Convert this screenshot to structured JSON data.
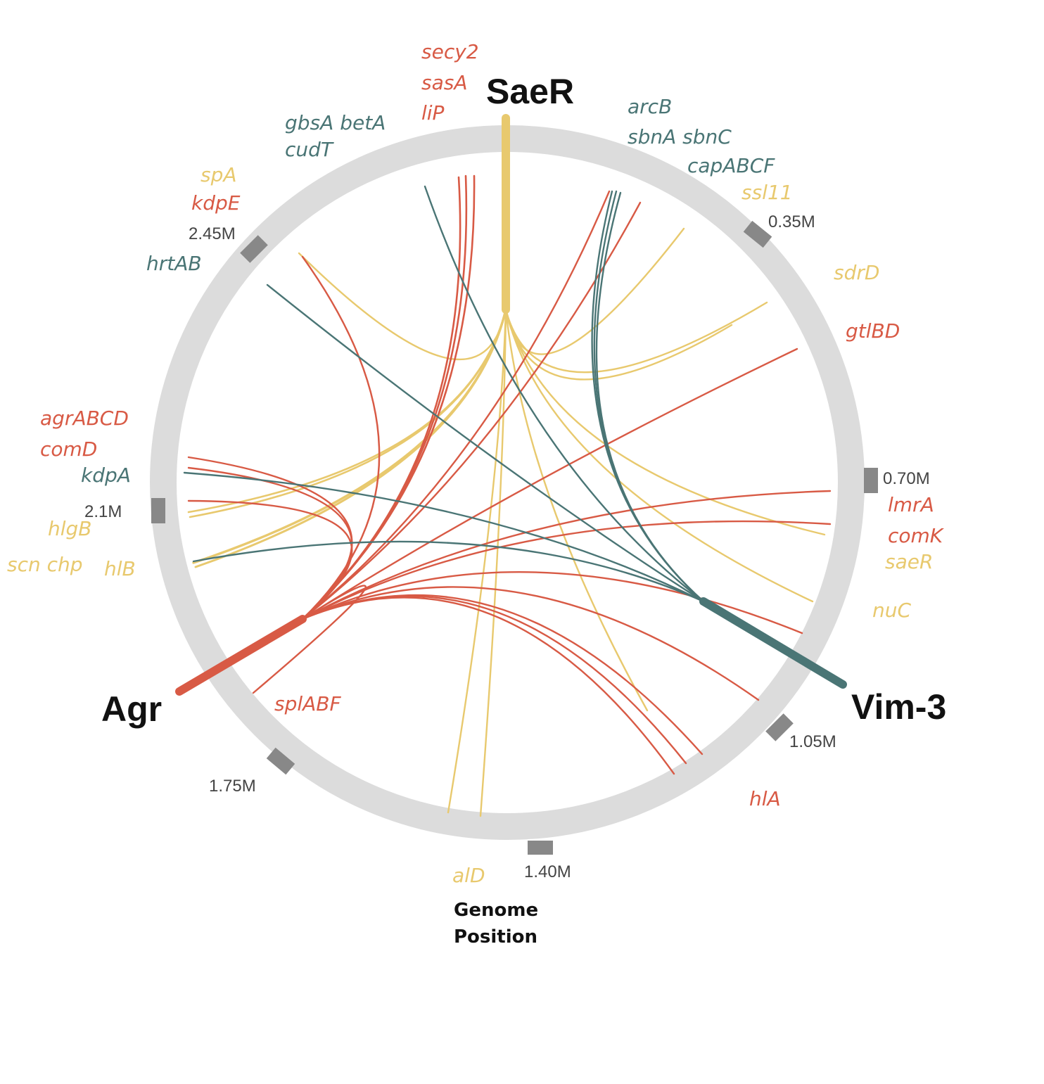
{
  "colors": {
    "SaeR": "#e8c96e",
    "Agr": "#d85a45",
    "Vim-3": "#4a7575",
    "ring": "#dcdcdc",
    "tick_mark": "#888888"
  },
  "axis_label": [
    "Genome",
    "Position"
  ],
  "hubs": [
    {
      "id": "SaeR",
      "label": "SaeR"
    },
    {
      "id": "Agr",
      "label": "Agr"
    },
    {
      "id": "Vim-3",
      "label": "Vim-3"
    }
  ],
  "ticks": [
    "0.35M",
    "0.70M",
    "1.05M",
    "1.40M",
    "1.75M",
    "2.1M",
    "2.45M"
  ],
  "gene_labels": [
    {
      "text": "secy2",
      "group": "Agr"
    },
    {
      "text": "sasA",
      "group": "Agr"
    },
    {
      "text": "liP",
      "group": "Agr"
    },
    {
      "text": "gbsA betA",
      "group": "Vim-3"
    },
    {
      "text": "cudT",
      "group": "Vim-3"
    },
    {
      "text": "arcB",
      "group": "Vim-3"
    },
    {
      "text": "sbnA sbnC",
      "group": "Vim-3"
    },
    {
      "text": "capABCF",
      "group": "Vim-3"
    },
    {
      "text": "ssl11",
      "group": "SaeR"
    },
    {
      "text": "spA",
      "group": "SaeR"
    },
    {
      "text": "kdpE",
      "group": "Agr"
    },
    {
      "text": "hrtAB",
      "group": "Vim-3"
    },
    {
      "text": "sdrD",
      "group": "SaeR"
    },
    {
      "text": "gtlBD",
      "group": "Agr"
    },
    {
      "text": "agrABCD",
      "group": "Agr"
    },
    {
      "text": "comD",
      "group": "Agr"
    },
    {
      "text": "kdpA",
      "group": "Vim-3"
    },
    {
      "text": "hlgB",
      "group": "SaeR"
    },
    {
      "text": "scn chp",
      "group": "SaeR"
    },
    {
      "text": "hlB",
      "group": "SaeR"
    },
    {
      "text": "lmrA",
      "group": "Agr"
    },
    {
      "text": "comK",
      "group": "Agr"
    },
    {
      "text": "saeR",
      "group": "SaeR"
    },
    {
      "text": "nuC",
      "group": "SaeR"
    },
    {
      "text": "splABF",
      "group": "Agr"
    },
    {
      "text": "hlA",
      "group": "Agr"
    },
    {
      "text": "alD",
      "group": "SaeR"
    }
  ]
}
